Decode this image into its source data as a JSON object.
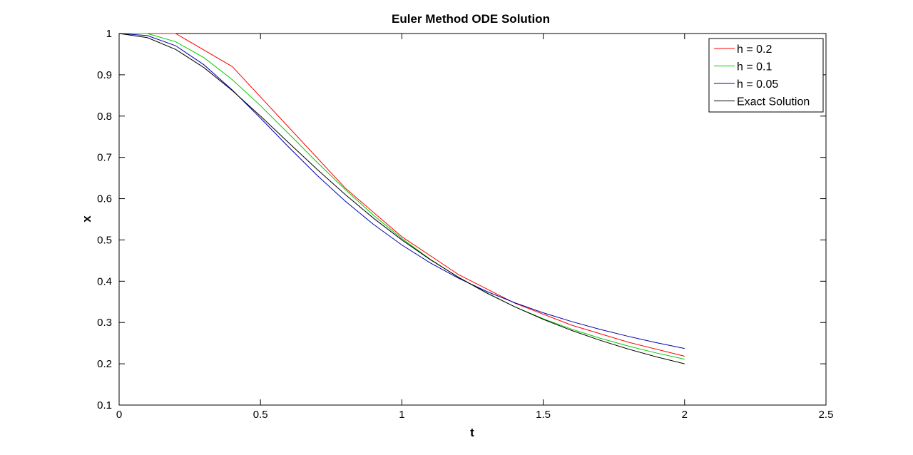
{
  "chart_data": {
    "type": "line",
    "title": "Euler Method ODE Solution",
    "xlabel": "t",
    "ylabel": "x",
    "xlim": [
      0,
      2.5
    ],
    "ylim": [
      0.1,
      1
    ],
    "xticks": [
      "0",
      "0.5",
      "1",
      "1.5",
      "2",
      "2.5"
    ],
    "yticks": [
      "0.1",
      "0.2",
      "0.3",
      "0.4",
      "0.5",
      "0.6",
      "0.7",
      "0.8",
      "0.9",
      "1"
    ],
    "grid": false,
    "legend_position": "top-right",
    "series": [
      {
        "name": "h = 0.2",
        "color": "#ff0000",
        "x": [
          0,
          0.2,
          0.4,
          0.6,
          0.8,
          1.0,
          1.2,
          1.4,
          1.6,
          1.8,
          2.0
        ],
        "y": [
          1.0,
          1.0,
          0.92,
          0.7728,
          0.6254,
          0.5078,
          0.4163,
          0.3467,
          0.2937,
          0.2524,
          0.2184
        ]
      },
      {
        "name": "h = 0.1",
        "color": "#00cc00",
        "x": [
          0,
          0.1,
          0.2,
          0.3,
          0.4,
          0.5,
          0.6,
          0.7,
          0.8,
          0.9,
          1.0,
          1.1,
          1.2,
          1.3,
          1.4,
          1.5,
          1.6,
          1.7,
          1.8,
          1.9,
          2.0
        ],
        "y": [
          1.0,
          1.0,
          0.98,
          0.9416,
          0.8884,
          0.8252,
          0.7571,
          0.6882,
          0.6218,
          0.5598,
          0.5035,
          0.4534,
          0.4094,
          0.3711,
          0.3379,
          0.3091,
          0.2841,
          0.2622,
          0.2431,
          0.2262,
          0.2112
        ]
      },
      {
        "name": "h = 0.05",
        "color": "#0000aa",
        "x": [
          0,
          0.1,
          0.2,
          0.3,
          0.4,
          0.5,
          0.6,
          0.7,
          0.8,
          0.9,
          1.0,
          1.1,
          1.2,
          1.3,
          1.4,
          1.5,
          1.6,
          1.7,
          1.8,
          1.9,
          2.0
        ],
        "y": [
          1.0,
          0.995,
          0.9704,
          0.9243,
          0.8634,
          0.7951,
          0.7247,
          0.6566,
          0.5938,
          0.5374,
          0.4878,
          0.4446,
          0.4074,
          0.3753,
          0.3477,
          0.3236,
          0.3024,
          0.2836,
          0.2666,
          0.2512,
          0.2371
        ]
      },
      {
        "name": "Exact Solution",
        "color": "#000000",
        "x": [
          0,
          0.1,
          0.2,
          0.3,
          0.4,
          0.5,
          0.6,
          0.7,
          0.8,
          0.9,
          1.0,
          1.1,
          1.2,
          1.3,
          1.4,
          1.5,
          1.6,
          1.7,
          1.8,
          1.9,
          2.0
        ],
        "y": [
          1.0,
          0.9901,
          0.9615,
          0.9174,
          0.8621,
          0.8,
          0.7353,
          0.6711,
          0.6098,
          0.5525,
          0.5,
          0.4525,
          0.4098,
          0.3717,
          0.3378,
          0.3077,
          0.2809,
          0.2571,
          0.2358,
          0.2169,
          0.2
        ]
      }
    ]
  }
}
